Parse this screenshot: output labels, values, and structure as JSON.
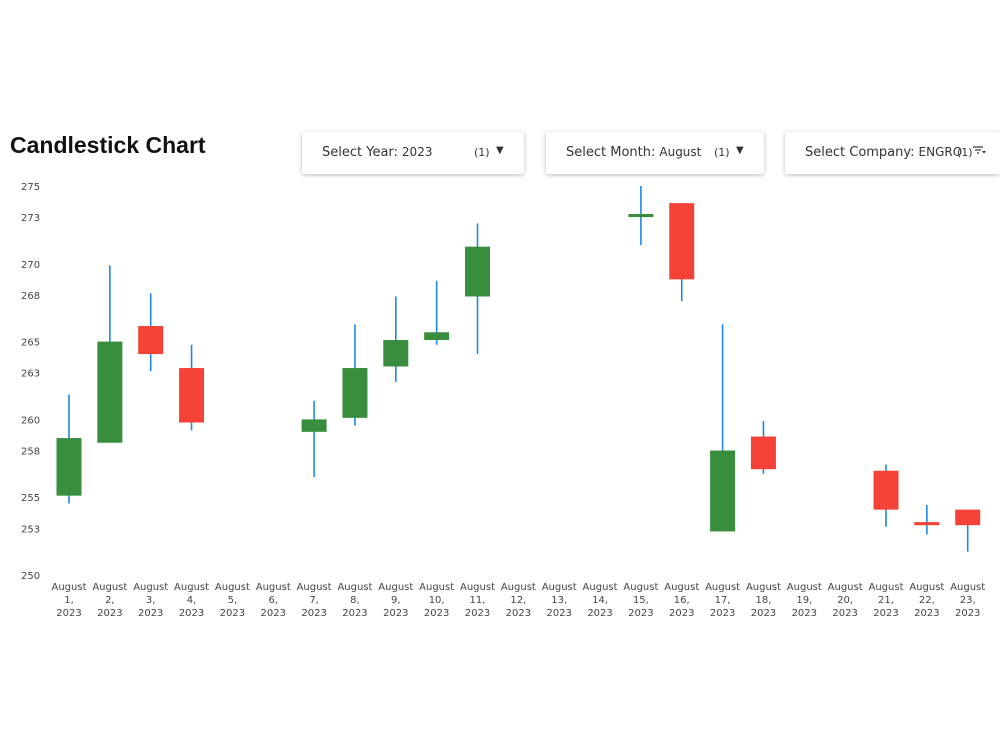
{
  "title": "Candlestick Chart",
  "filters": {
    "year": {
      "label": "Select Year:",
      "value": "2023",
      "count": "(1)"
    },
    "month": {
      "label": "Select Month:",
      "value": "August",
      "count": "(1)"
    },
    "company": {
      "label": "Select Company:",
      "value": "ENGRO",
      "count": "(1)"
    }
  },
  "colors": {
    "up": "#388e3c",
    "down": "#f44336",
    "wick": "#1e88e5"
  },
  "chart_data": {
    "type": "candlestick",
    "title": "Candlestick Chart",
    "ylim": [
      250,
      275
    ],
    "yticks": [
      250,
      253,
      255,
      258,
      260,
      263,
      265,
      268,
      270,
      273,
      275
    ],
    "categories": [
      "August 1, 2023",
      "August 2, 2023",
      "August 3, 2023",
      "August 4, 2023",
      "August 5, 2023",
      "August 6, 2023",
      "August 7, 2023",
      "August 8, 2023",
      "August 9, 2023",
      "August 10, 2023",
      "August 11, 2023",
      "August 12, 2023",
      "August 13, 2023",
      "August 14, 2023",
      "August 15, 2023",
      "August 16, 2023",
      "August 17, 2023",
      "August 18, 2023",
      "August 19, 2023",
      "August 20, 2023",
      "August 21, 2023",
      "August 22, 2023",
      "August 23, 2023"
    ],
    "tick_labels": [
      [
        "August",
        "1,",
        "2023"
      ],
      [
        "August",
        "2,",
        "2023"
      ],
      [
        "August",
        "3,",
        "2023"
      ],
      [
        "August",
        "4,",
        "2023"
      ],
      [
        "August",
        "5,",
        "2023"
      ],
      [
        "August",
        "6,",
        "2023"
      ],
      [
        "August",
        "7,",
        "2023"
      ],
      [
        "August",
        "8,",
        "2023"
      ],
      [
        "August",
        "9,",
        "2023"
      ],
      [
        "August",
        "10,",
        "2023"
      ],
      [
        "August",
        "11,",
        "2023"
      ],
      [
        "August",
        "12,",
        "2023"
      ],
      [
        "August",
        "13,",
        "2023"
      ],
      [
        "August",
        "14,",
        "2023"
      ],
      [
        "August",
        "15,",
        "2023"
      ],
      [
        "August",
        "16,",
        "2023"
      ],
      [
        "August",
        "17,",
        "2023"
      ],
      [
        "August",
        "18,",
        "2023"
      ],
      [
        "August",
        "19,",
        "2023"
      ],
      [
        "August",
        "20,",
        "2023"
      ],
      [
        "August",
        "21,",
        "2023"
      ],
      [
        "August",
        "22,",
        "2023"
      ],
      [
        "August",
        "23,",
        "2023"
      ]
    ],
    "ohlc": [
      {
        "open": 255.1,
        "high": 261.6,
        "low": 254.6,
        "close": 258.8
      },
      {
        "open": 258.5,
        "high": 269.9,
        "low": 258.5,
        "close": 265.0
      },
      {
        "open": 266.0,
        "high": 268.1,
        "low": 263.1,
        "close": 264.2
      },
      {
        "open": 263.3,
        "high": 264.8,
        "low": 259.3,
        "close": 259.8
      },
      null,
      null,
      {
        "open": 259.2,
        "high": 261.2,
        "low": 256.3,
        "close": 260.0
      },
      {
        "open": 260.1,
        "high": 266.1,
        "low": 259.6,
        "close": 263.3
      },
      {
        "open": 263.4,
        "high": 267.9,
        "low": 262.4,
        "close": 265.1
      },
      {
        "open": 265.1,
        "high": 268.9,
        "low": 264.8,
        "close": 265.6
      },
      {
        "open": 267.9,
        "high": 272.6,
        "low": 264.2,
        "close": 271.1
      },
      null,
      null,
      null,
      {
        "open": 273.0,
        "high": 275.0,
        "low": 271.2,
        "close": 273.2
      },
      {
        "open": 273.9,
        "high": 273.9,
        "low": 267.6,
        "close": 269.0
      },
      {
        "open": 252.8,
        "high": 266.1,
        "low": 252.8,
        "close": 258.0
      },
      {
        "open": 258.9,
        "high": 259.9,
        "low": 256.5,
        "close": 256.8
      },
      null,
      null,
      {
        "open": 256.7,
        "high": 257.1,
        "low": 253.1,
        "close": 254.2
      },
      {
        "open": 253.4,
        "high": 254.5,
        "low": 252.6,
        "close": 253.2
      },
      {
        "open": 254.2,
        "high": 254.2,
        "low": 251.5,
        "close": 253.2
      }
    ]
  }
}
